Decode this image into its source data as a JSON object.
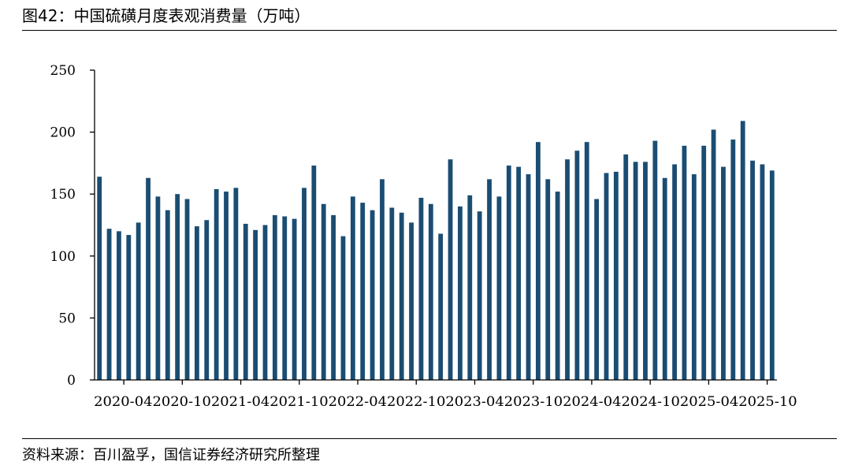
{
  "figure": {
    "title": "图42：中国硫磺月度表观消费量（万吨）",
    "source": "资料来源：百川盈孚，国信证券经济研究所整理"
  },
  "colors": {
    "bar": "#1B4D72",
    "axis": "#000000"
  },
  "chart_data": {
    "type": "bar",
    "title": "",
    "xlabel": "",
    "ylabel": "",
    "ylim": [
      0,
      250
    ],
    "yticks": [
      0,
      50,
      100,
      150,
      200,
      250
    ],
    "categories": [
      "2020-01",
      "2020-02",
      "2020-03",
      "2020-04",
      "2020-05",
      "2020-06",
      "2020-07",
      "2020-08",
      "2020-09",
      "2020-10",
      "2020-11",
      "2020-12",
      "2021-01",
      "2021-02",
      "2021-03",
      "2021-04",
      "2021-05",
      "2021-06",
      "2021-07",
      "2021-08",
      "2021-09",
      "2021-10",
      "2021-11",
      "2021-12",
      "2022-01",
      "2022-02",
      "2022-03",
      "2022-04",
      "2022-05",
      "2022-06",
      "2022-07",
      "2022-08",
      "2022-09",
      "2022-10",
      "2022-11",
      "2022-12",
      "2023-01",
      "2023-02",
      "2023-03",
      "2023-04",
      "2023-05",
      "2023-06",
      "2023-07",
      "2023-08",
      "2023-09",
      "2023-10",
      "2023-11",
      "2023-12",
      "2024-01",
      "2024-02",
      "2024-03",
      "2024-04",
      "2024-05",
      "2024-06",
      "2024-07",
      "2024-08",
      "2024-09",
      "2024-10",
      "2024-11",
      "2024-12",
      "2025-01",
      "2025-02",
      "2025-03",
      "2025-04",
      "2025-05",
      "2025-06",
      "2025-07",
      "2025-08",
      "2025-09",
      "2025-10"
    ],
    "values": [
      164,
      122,
      120,
      117,
      127,
      163,
      148,
      137,
      150,
      146,
      124,
      129,
      154,
      152,
      155,
      126,
      121,
      125,
      133,
      132,
      130,
      155,
      173,
      142,
      133,
      116,
      148,
      143,
      137,
      162,
      139,
      135,
      127,
      147,
      142,
      118,
      178,
      140,
      149,
      136,
      162,
      148,
      173,
      172,
      166,
      192,
      162,
      152,
      178,
      185,
      192,
      146,
      167,
      168,
      182,
      176,
      176,
      193,
      163,
      174,
      189,
      166,
      189,
      202,
      172,
      194,
      209,
      177,
      174,
      169
    ],
    "xtick_labels": [
      "2020-04",
      "2020-10",
      "2021-04",
      "2021-10",
      "2022-04",
      "2022-10",
      "2023-04",
      "2023-10",
      "2024-04",
      "2024-10",
      "2025-04",
      "2025-10"
    ],
    "xtick_label_text": "2020-042020-102021-042021-102022-042022-102023-042023-102024-042024-102025-042025-10",
    "grid": false,
    "legend": "none"
  }
}
